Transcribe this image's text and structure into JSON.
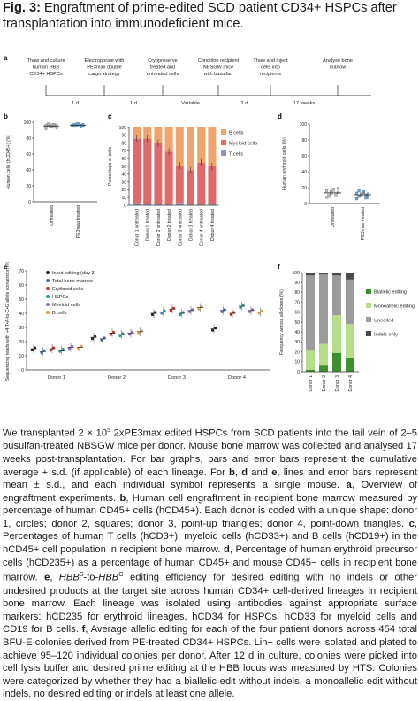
{
  "figure": {
    "title_bold": "Fig. 3:",
    "title_rest": " Engraftment of prime-edited SCD patient CD34+ HSPCs after transplantation into immunodeficient mice."
  },
  "panel_a": {
    "letter": "a",
    "steps": [
      [
        "Thaw and culture",
        "human HBB",
        "CD34+ HSPCs"
      ],
      [
        "Electroporate with",
        "PE3max double",
        "cargo strategy"
      ],
      [
        "Cryopreserve",
        "treated and",
        "untreated cells"
      ],
      [
        "Condition recipient",
        "NBSGW mice",
        "with busulfan"
      ],
      [
        "Thaw and inject",
        "cells into",
        "recipients"
      ],
      [
        "Analyse bone",
        "marrow"
      ]
    ],
    "intervals": [
      "1 d",
      "1 d",
      "Variable",
      "2 d",
      "17 weeks"
    ]
  },
  "panel_b": {
    "letter": "b",
    "ylabel": "Human cells (hCD45+) (%)",
    "yticks": [
      "0",
      "20",
      "40",
      "60",
      "80",
      "100"
    ],
    "categories": [
      "Untreated",
      "PE3max treated"
    ]
  },
  "panel_c": {
    "letter": "c",
    "ylabel": "Percentage of cells",
    "yticks": [
      "0",
      "10",
      "20",
      "30",
      "40",
      "50",
      "60",
      "70",
      "80",
      "90",
      "100"
    ],
    "categories": [
      "Donor 1 untreated",
      "Donor 1 treated",
      "Donor 2 untreated",
      "Donor 2 treated",
      "Donor 3 untreated",
      "Donor 3 treated",
      "Donor 4 untreated",
      "Donor 4 treated"
    ],
    "legend": [
      "B cells",
      "Myeloid cells",
      "T cells"
    ]
  },
  "panel_d": {
    "letter": "d",
    "ylabel": "Human erythroid cells (%)",
    "yticks": [
      "0",
      "20",
      "40",
      "60",
      "80",
      "100"
    ],
    "categories": [
      "Untreated",
      "PE3max treated"
    ]
  },
  "panel_e": {
    "letter": "e",
    "ylabel": "Sequencing reads with +4 T•A-to-C•G allele conversion (%)",
    "yticks": [
      "0",
      "10",
      "20",
      "30",
      "40",
      "50",
      "60",
      "70"
    ],
    "groups": [
      "Donor 1",
      "Donor 2",
      "Donor 3",
      "Donor 4"
    ],
    "legend": [
      "Input editing (day 3)",
      "Total bone marrow",
      "Erythroid cells",
      "HSPCs",
      "Myeloid cells",
      "B cells"
    ]
  },
  "panel_f": {
    "letter": "f",
    "ylabel": "Frequency across all clones (%)",
    "yticks": [
      "0",
      "10",
      "20",
      "30",
      "40",
      "50",
      "60",
      "70",
      "80",
      "90",
      "100"
    ],
    "categories": [
      "Donor 1",
      "Donor 2",
      "Donor 3",
      "Donor 4"
    ],
    "legend": [
      "Biallelic editing",
      "Monoallelic editing",
      "Unedited",
      "Indels only"
    ]
  },
  "colors": {
    "b_cells": "#f0a36b",
    "myeloid": "#e06a6a",
    "t_cells": "#9a8fb8",
    "biallelic": "#3f8f2f",
    "monoallelic": "#b6dc8c",
    "unedited": "#9c9c9c",
    "indels": "#4a4a4a",
    "e_input": "#2b2b2b",
    "e_tbm": "#3b6fb5",
    "e_ery": "#c0392b",
    "e_hspc": "#2a9d8f",
    "e_mye": "#8e6cc4",
    "e_bcell": "#e59b44"
  },
  "chart_data": [
    {
      "type": "scatter",
      "panel": "b",
      "ylabel": "Human cells (hCD45+) (%)",
      "ylim": [
        0,
        100
      ],
      "categories": [
        "Untreated",
        "PE3max treated"
      ],
      "series": [
        {
          "values": [
            92,
            96,
            94,
            97,
            95,
            93,
            96,
            98,
            95,
            94,
            97,
            96
          ]
        },
        {
          "values": [
            95,
            97,
            96,
            98,
            94,
            97,
            96,
            95,
            98,
            97,
            96,
            95,
            97
          ]
        }
      ]
    },
    {
      "type": "bar",
      "panel": "c",
      "stacked": true,
      "ylabel": "Percentage of cells",
      "ylim": [
        0,
        100
      ],
      "categories": [
        "Donor 1 untreated",
        "Donor 1 treated",
        "Donor 2 untreated",
        "Donor 2 treated",
        "Donor 3 untreated",
        "Donor 3 treated",
        "Donor 4 untreated",
        "Donor 4 treated"
      ],
      "series": [
        {
          "name": "T cells",
          "values": [
            3,
            2,
            2,
            2,
            3,
            2,
            2,
            2
          ]
        },
        {
          "name": "Myeloid cells",
          "values": [
            83,
            84,
            78,
            67,
            48,
            43,
            53,
            48
          ]
        },
        {
          "name": "B cells",
          "values": [
            14,
            14,
            20,
            31,
            49,
            55,
            45,
            50
          ]
        }
      ]
    },
    {
      "type": "scatter",
      "panel": "d",
      "ylabel": "Human erythroid cells (%)",
      "ylim": [
        0,
        100
      ],
      "categories": [
        "Untreated",
        "PE3max treated"
      ],
      "series": [
        {
          "values": [
            8,
            12,
            15,
            18,
            10,
            14,
            16,
            9,
            13,
            17,
            11,
            19
          ]
        },
        {
          "values": [
            6,
            9,
            12,
            14,
            11,
            8,
            13,
            16,
            10,
            15,
            7,
            12
          ]
        }
      ]
    },
    {
      "type": "scatter",
      "panel": "e",
      "ylabel": "Sequencing reads with +4 T•A-to-C•G allele conversion (%)",
      "ylim": [
        0,
        70
      ],
      "categories": [
        "Donor 1",
        "Donor 2",
        "Donor 3",
        "Donor 4"
      ],
      "series": [
        {
          "name": "Input editing (day 3)",
          "values": [
            15,
            23,
            40,
            29
          ]
        },
        {
          "name": "Total bone marrow",
          "values": [
            13,
            22,
            41,
            42
          ]
        },
        {
          "name": "Erythroid cells",
          "values": [
            15,
            26,
            43,
            40
          ]
        },
        {
          "name": "HSPCs",
          "values": [
            14,
            25,
            40,
            45
          ]
        },
        {
          "name": "Myeloid cells",
          "values": [
            16,
            26,
            42,
            42
          ]
        },
        {
          "name": "B cells",
          "values": [
            16,
            27,
            44,
            41
          ]
        }
      ]
    },
    {
      "type": "bar",
      "panel": "f",
      "stacked": true,
      "ylabel": "Frequency across all clones (%)",
      "ylim": [
        0,
        100
      ],
      "categories": [
        "Donor 1",
        "Donor 2",
        "Donor 3",
        "Donor 4"
      ],
      "series": [
        {
          "name": "Biallelic editing",
          "values": [
            2,
            7,
            19,
            14
          ]
        },
        {
          "name": "Monoallelic editing",
          "values": [
            20,
            21,
            38,
            34
          ]
        },
        {
          "name": "Unedited",
          "values": [
            75,
            70,
            40,
            45
          ]
        },
        {
          "name": "Indels only",
          "values": [
            3,
            2,
            3,
            7
          ]
        }
      ]
    }
  ],
  "caption": {
    "parts": [
      "We transplanted 2 × 10",
      "5",
      " 2xPE3max edited HSPCs from SCD patients into the tail vein of 2–5 busulfan-treated NBSGW mice per donor. Mouse bone marrow was collected and analysed 17 weeks post-transplantation. For bar graphs, bars and error bars represent the cumulative average + s.d. (if applicable) of each lineage. For ",
      "b",
      ", ",
      "d",
      " and ",
      "e",
      ", lines and error bars represent mean ± s.d., and each individual symbol represents a single mouse. ",
      "a",
      ", Overview of engraftment experiments. ",
      "b",
      ", Human cell engraftment in recipient bone marrow measured by percentage of human CD45+ cells (hCD45+). Each donor is coded with a unique shape: donor 1, circles; donor 2, squares; donor 3, point-up triangles; donor 4, point-down triangles. ",
      "c",
      ", Percentages of human T cells (hCD3+), myeloid cells (hCD33+) and B cells (hCD19+) in the hCD45+ cell population in recipient bone marrow. ",
      "d",
      ", Percentage of human erythroid precursor cells (hCD235+) as a percentage of human CD45+ and mouse CD45− cells in recipient bone marrow. ",
      "e",
      ", ",
      "HBB",
      "S",
      "-to-",
      "HBB",
      "G",
      " editing efficiency for desired editing with no indels or other undesired products at the target site across human CD34+ cell-derived lineages in recipient bone marrow. Each lineage was isolated using antibodies against appropriate surface markers: hCD235 for erythroid lineages, hCD34 for HSPCs, hCD33 for myeloid cells and CD19 for B cells. ",
      "f",
      ", Average allelic editing for each of the four patient donors across 454 total BFU-E colonies derived from PE-treated CD34+ HSPCs. Lin− cells were isolated and plated to achieve 95–120 individual colonies per donor. After 12 d in culture, colonies were picked into cell lysis buffer and desired prime editing at the HBB locus was measured by HTS. Colonies were categorized by whether they had a biallelic edit without indels, a monoallelic edit without indels, no desired editing or indels at least one allele."
    ]
  }
}
